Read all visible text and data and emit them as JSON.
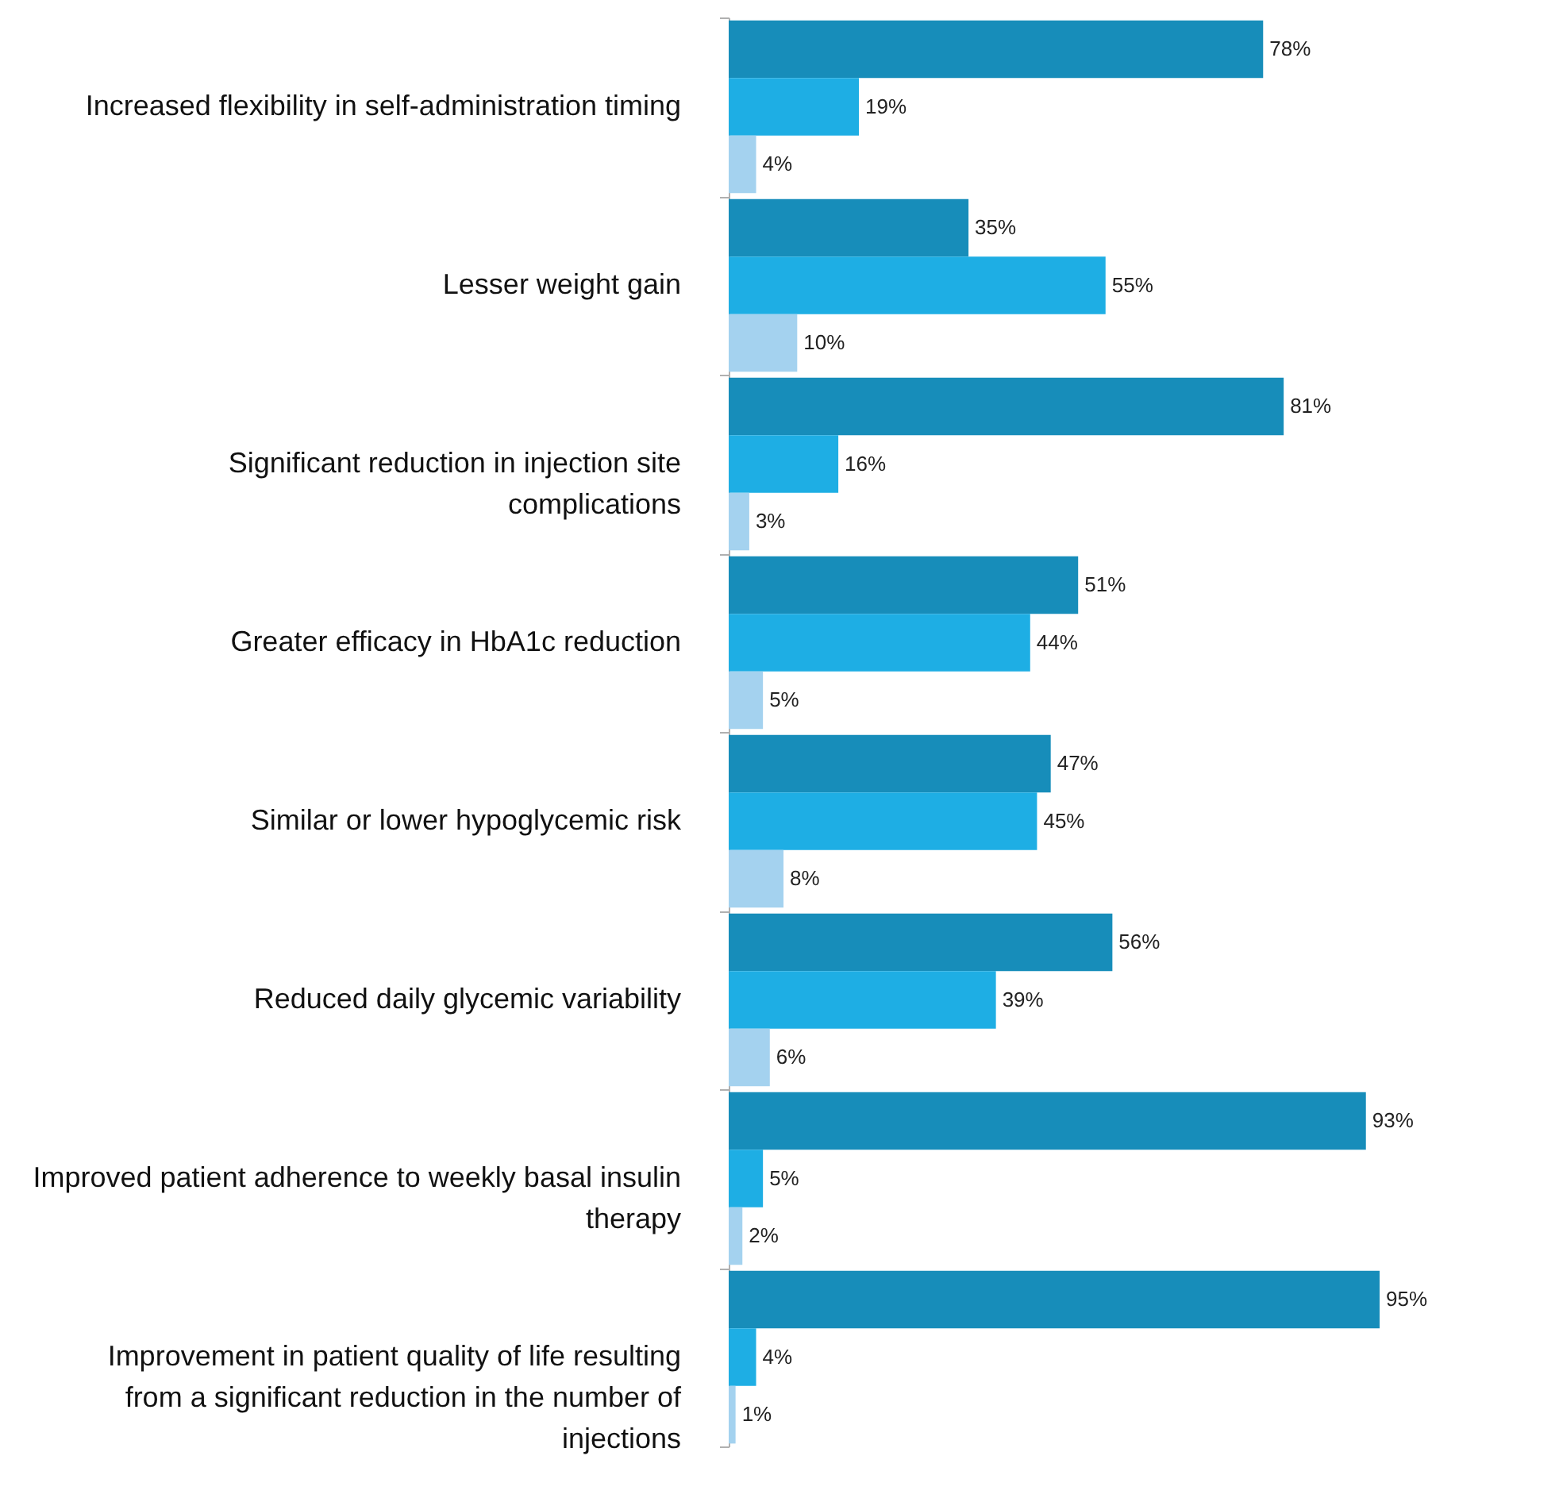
{
  "chart_data": {
    "type": "bar",
    "orientation": "horizontal",
    "categories": [
      "Increased flexibility in self-administration timing",
      "Lesser weight gain",
      "Significant reduction in injection site complications",
      "Greater efficacy in HbA1c reduction",
      "Similar or lower hypoglycemic risk",
      "Reduced daily glycemic variability",
      "Improved patient adherence to weekly basal insulin therapy",
      "Improvement in patient quality of life resulting from a significant reduction in the number of injections"
    ],
    "series": [
      {
        "color": "#178dba",
        "values": [
          78,
          35,
          81,
          51,
          47,
          56,
          93,
          95
        ],
        "value_labels": [
          "78%",
          "35%",
          "81%",
          "51%",
          "47%",
          "56%",
          "93%",
          "95%"
        ]
      },
      {
        "color": "#1eaee4",
        "values": [
          19,
          55,
          16,
          44,
          45,
          39,
          5,
          4
        ],
        "value_labels": [
          "19%",
          "55%",
          "16%",
          "44%",
          "45%",
          "39%",
          "5%",
          "4%"
        ]
      },
      {
        "color": "#a4d2ef",
        "values": [
          4,
          10,
          3,
          5,
          8,
          6,
          2,
          1
        ],
        "value_labels": [
          "4%",
          "10%",
          "3%",
          "5%",
          "8%",
          "6%",
          "2%",
          "1%"
        ]
      }
    ],
    "grid": false,
    "legend": false
  }
}
